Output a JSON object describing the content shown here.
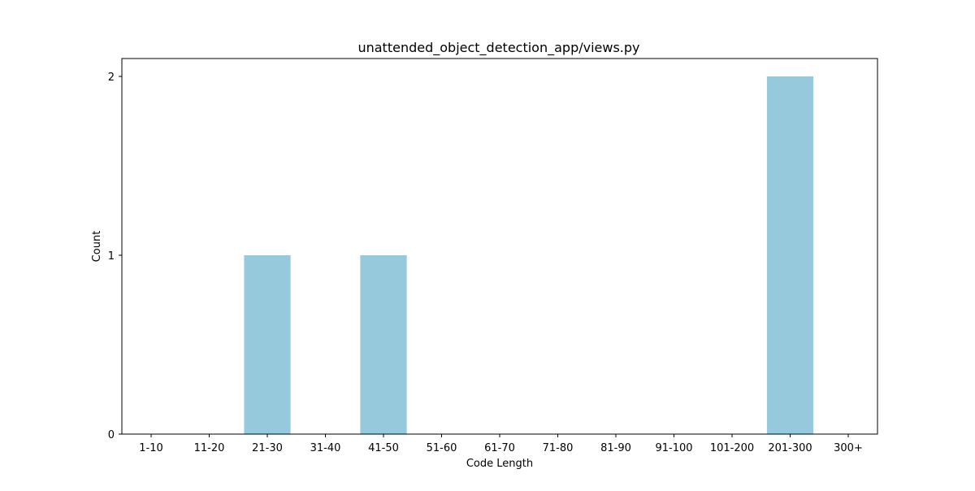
{
  "chart_data": {
    "type": "bar",
    "title": "unattended_object_detection_app/views.py",
    "xlabel": "Code Length",
    "ylabel": "Count",
    "categories": [
      "1-10",
      "11-20",
      "21-30",
      "31-40",
      "41-50",
      "51-60",
      "61-70",
      "71-80",
      "81-90",
      "91-100",
      "101-200",
      "201-300",
      "300+"
    ],
    "values": [
      0,
      0,
      1,
      0,
      1,
      0,
      0,
      0,
      0,
      0,
      0,
      2,
      0
    ],
    "ylim": [
      0,
      2.1
    ],
    "yticks": [
      0,
      1,
      2
    ],
    "grid": false,
    "bar_color": "#96c9dc",
    "axis_color": "#000000"
  }
}
